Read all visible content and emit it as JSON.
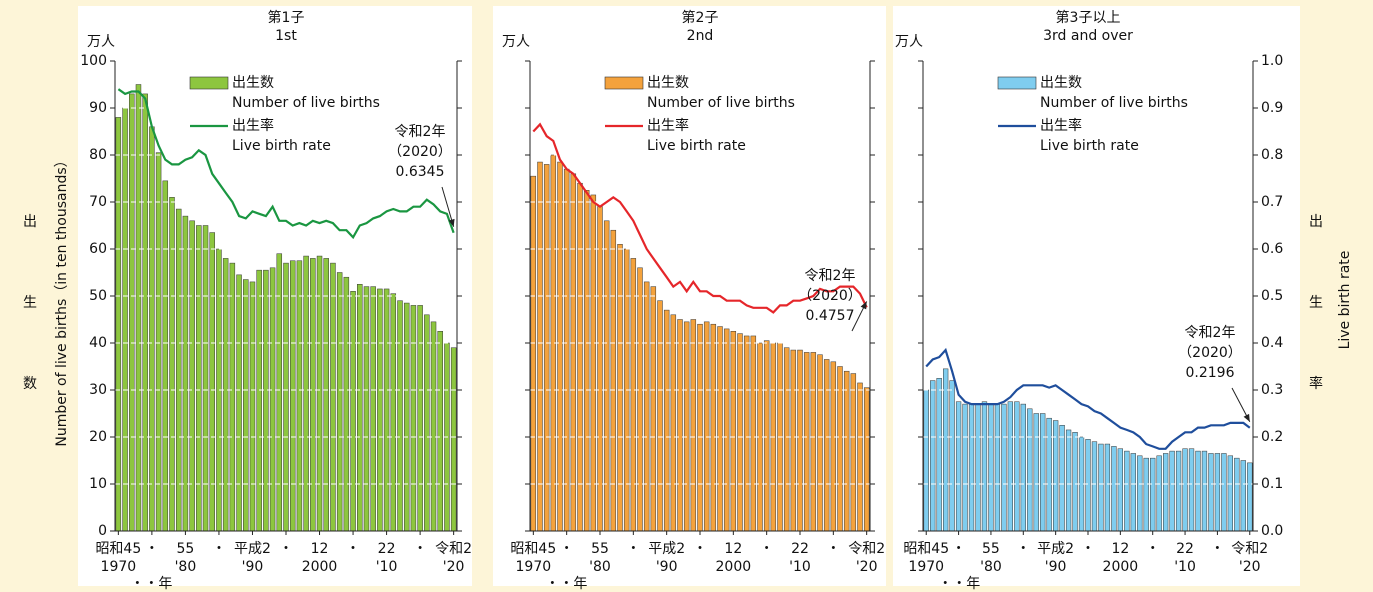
{
  "chart_data": [
    {
      "type": "combo",
      "title": "第1子",
      "subtitle": "1st",
      "unit": "万人",
      "ylabel": "Number of live births（in ten thousands）",
      "ylabel_ja": [
        "出",
        "生",
        "数"
      ],
      "x": [
        1970,
        1971,
        1972,
        1973,
        1974,
        1975,
        1976,
        1977,
        1978,
        1979,
        1980,
        1981,
        1982,
        1983,
        1984,
        1985,
        1986,
        1987,
        1988,
        1989,
        1990,
        1991,
        1992,
        1993,
        1994,
        1995,
        1996,
        1997,
        1998,
        1999,
        2000,
        2001,
        2002,
        2003,
        2004,
        2005,
        2006,
        2007,
        2008,
        2009,
        2010,
        2011,
        2012,
        2013,
        2014,
        2015,
        2016,
        2017,
        2018,
        2019,
        2020
      ],
      "xticks": [
        {
          "value": 1970,
          "label": "昭和45"
        },
        {
          "value": 1975,
          "label": "・"
        },
        {
          "value": 1980,
          "label": "55"
        },
        {
          "value": 1985,
          "label": "・"
        },
        {
          "value": 1990,
          "label": "平成2"
        },
        {
          "value": 1995,
          "label": "・"
        },
        {
          "value": 2000,
          "label": "12"
        },
        {
          "value": 2005,
          "label": "・"
        },
        {
          "value": 2010,
          "label": "22"
        },
        {
          "value": 2015,
          "label": "・"
        },
        {
          "value": 2020,
          "label": "令和2"
        }
      ],
      "xticks2": [
        1970,
        {
          "value": 1980,
          "label": "'80"
        },
        {
          "value": 1990,
          "label": "'90"
        },
        2000,
        {
          "value": 2010,
          "label": "'10"
        },
        {
          "value": 2020,
          "label": "'20"
        }
      ],
      "xlabel": "・・年",
      "ylim": [
        0,
        100
      ],
      "yticks": [
        0,
        10,
        20,
        30,
        40,
        50,
        60,
        70,
        80,
        90,
        100
      ],
      "ytick_labels": true,
      "y2lim": [
        0,
        1
      ],
      "y2ticks": [
        0,
        0.1,
        0.2,
        0.3,
        0.4,
        0.5,
        0.6,
        0.7,
        0.8,
        0.9,
        1
      ],
      "y2tick_labels": false,
      "grid": true,
      "series": [
        {
          "name": "出生数",
          "subname": "Number of live births",
          "type": "bar",
          "color": "#8dc63f",
          "values": [
            88,
            90,
            93,
            95,
            93,
            86,
            80.5,
            74.5,
            71,
            68.5,
            67,
            66,
            65,
            65,
            63.5,
            60,
            58,
            57,
            54.5,
            53.5,
            53,
            55.5,
            55.5,
            56,
            59,
            57,
            57.5,
            57.5,
            58.5,
            58,
            58.5,
            58,
            57,
            55,
            54,
            51,
            52.5,
            52,
            52,
            51.5,
            51.5,
            50.5,
            49,
            48.5,
            48,
            48,
            46,
            44.5,
            42.5,
            40,
            39
          ]
        },
        {
          "name": "出生率",
          "subname": "Live birth rate",
          "type": "line",
          "axis": "y2",
          "color": "#1a9641",
          "values": [
            0.94,
            0.93,
            0.935,
            0.935,
            0.92,
            0.86,
            0.82,
            0.79,
            0.78,
            0.78,
            0.79,
            0.795,
            0.81,
            0.8,
            0.76,
            0.74,
            0.72,
            0.7,
            0.67,
            0.665,
            0.68,
            0.675,
            0.67,
            0.69,
            0.66,
            0.66,
            0.65,
            0.655,
            0.65,
            0.66,
            0.655,
            0.66,
            0.655,
            0.64,
            0.64,
            0.625,
            0.65,
            0.655,
            0.665,
            0.67,
            0.68,
            0.685,
            0.68,
            0.68,
            0.69,
            0.69,
            0.705,
            0.695,
            0.68,
            0.675,
            0.6345
          ]
        }
      ],
      "annotation": [
        "令和2年",
        "（2020）",
        "0.6345"
      ]
    },
    {
      "type": "combo",
      "title": "第2子",
      "subtitle": "2nd",
      "unit": "万人",
      "x": [
        1970,
        1971,
        1972,
        1973,
        1974,
        1975,
        1976,
        1977,
        1978,
        1979,
        1980,
        1981,
        1982,
        1983,
        1984,
        1985,
        1986,
        1987,
        1988,
        1989,
        1990,
        1991,
        1992,
        1993,
        1994,
        1995,
        1996,
        1997,
        1998,
        1999,
        2000,
        2001,
        2002,
        2003,
        2004,
        2005,
        2006,
        2007,
        2008,
        2009,
        2010,
        2011,
        2012,
        2013,
        2014,
        2015,
        2016,
        2017,
        2018,
        2019,
        2020
      ],
      "xticks": [
        {
          "value": 1970,
          "label": "昭和45"
        },
        {
          "value": 1975,
          "label": "・"
        },
        {
          "value": 1980,
          "label": "55"
        },
        {
          "value": 1985,
          "label": "・"
        },
        {
          "value": 1990,
          "label": "平成2"
        },
        {
          "value": 1995,
          "label": "・"
        },
        {
          "value": 2000,
          "label": "12"
        },
        {
          "value": 2005,
          "label": "・"
        },
        {
          "value": 2010,
          "label": "22"
        },
        {
          "value": 2015,
          "label": "・"
        },
        {
          "value": 2020,
          "label": "令和2"
        }
      ],
      "xticks2": [
        1970,
        {
          "value": 1980,
          "label": "'80"
        },
        {
          "value": 1990,
          "label": "'90"
        },
        2000,
        {
          "value": 2010,
          "label": "'10"
        },
        {
          "value": 2020,
          "label": "'20"
        }
      ],
      "xlabel": "・・年",
      "ylim": [
        0,
        100
      ],
      "yticks": [
        0,
        10,
        20,
        30,
        40,
        50,
        60,
        70,
        80,
        90,
        100
      ],
      "ytick_labels": false,
      "y2lim": [
        0,
        1
      ],
      "y2ticks": [
        0,
        0.1,
        0.2,
        0.3,
        0.4,
        0.5,
        0.6,
        0.7,
        0.8,
        0.9,
        1
      ],
      "y2tick_labels": false,
      "grid": true,
      "series": [
        {
          "name": "出生数",
          "subname": "Number of live births",
          "type": "bar",
          "color": "#f4a23c",
          "values": [
            75.5,
            78.5,
            78,
            80,
            78.5,
            77,
            76,
            74,
            72.5,
            71.5,
            69,
            66,
            64,
            61,
            60,
            58,
            56,
            53,
            52,
            49,
            47,
            46,
            45,
            44.5,
            45,
            44,
            44.5,
            44,
            43.5,
            43,
            42.5,
            42,
            41.5,
            41.5,
            40,
            40.5,
            40,
            40,
            39,
            38.5,
            38.5,
            38,
            38,
            37.5,
            36.5,
            36,
            35,
            34,
            33.5,
            31.5,
            30.5
          ]
        },
        {
          "name": "出生率",
          "subname": "Live birth rate",
          "type": "line",
          "axis": "y2",
          "color": "#e5262a",
          "values": [
            0.85,
            0.865,
            0.84,
            0.83,
            0.79,
            0.77,
            0.76,
            0.74,
            0.72,
            0.7,
            0.69,
            0.7,
            0.71,
            0.7,
            0.68,
            0.66,
            0.63,
            0.6,
            0.58,
            0.56,
            0.54,
            0.52,
            0.53,
            0.51,
            0.53,
            0.51,
            0.51,
            0.5,
            0.5,
            0.49,
            0.49,
            0.49,
            0.48,
            0.475,
            0.475,
            0.475,
            0.465,
            0.48,
            0.48,
            0.49,
            0.49,
            0.495,
            0.5,
            0.515,
            0.51,
            0.51,
            0.52,
            0.52,
            0.52,
            0.505,
            0.4757
          ]
        }
      ],
      "annotation": [
        "令和2年",
        "（2020）",
        "0.4757"
      ]
    },
    {
      "type": "combo",
      "title": "第3子以上",
      "subtitle": "3rd and over",
      "unit": "万人",
      "y2label": "Live birth rate",
      "y2label_ja": [
        "出",
        "生",
        "率"
      ],
      "x": [
        1970,
        1971,
        1972,
        1973,
        1974,
        1975,
        1976,
        1977,
        1978,
        1979,
        1980,
        1981,
        1982,
        1983,
        1984,
        1985,
        1986,
        1987,
        1988,
        1989,
        1990,
        1991,
        1992,
        1993,
        1994,
        1995,
        1996,
        1997,
        1998,
        1999,
        2000,
        2001,
        2002,
        2003,
        2004,
        2005,
        2006,
        2007,
        2008,
        2009,
        2010,
        2011,
        2012,
        2013,
        2014,
        2015,
        2016,
        2017,
        2018,
        2019,
        2020
      ],
      "xticks": [
        {
          "value": 1970,
          "label": "昭和45"
        },
        {
          "value": 1975,
          "label": "・"
        },
        {
          "value": 1980,
          "label": "55"
        },
        {
          "value": 1985,
          "label": "・"
        },
        {
          "value": 1990,
          "label": "平成2"
        },
        {
          "value": 1995,
          "label": "・"
        },
        {
          "value": 2000,
          "label": "12"
        },
        {
          "value": 2005,
          "label": "・"
        },
        {
          "value": 2010,
          "label": "22"
        },
        {
          "value": 2015,
          "label": "・"
        },
        {
          "value": 2020,
          "label": "令和2"
        }
      ],
      "xticks2": [
        1970,
        {
          "value": 1980,
          "label": "'80"
        },
        {
          "value": 1990,
          "label": "'90"
        },
        2000,
        {
          "value": 2010,
          "label": "'10"
        },
        {
          "value": 2020,
          "label": "'20"
        }
      ],
      "xlabel": "・・年",
      "ylim": [
        0,
        100
      ],
      "yticks": [
        0,
        10,
        20,
        30,
        40,
        50,
        60,
        70,
        80,
        90,
        100
      ],
      "ytick_labels": false,
      "y2lim": [
        0,
        1
      ],
      "y2ticks": [
        {
          "value": 0,
          "label": "0.0"
        },
        0.1,
        0.2,
        0.3,
        0.4,
        0.5,
        0.6,
        0.7,
        0.8,
        0.9,
        {
          "value": 1,
          "label": "1.0"
        }
      ],
      "y2tick_labels": true,
      "grid": true,
      "series": [
        {
          "name": "出生数",
          "subname": "Number of live births",
          "type": "bar",
          "color": "#7fcdef",
          "values": [
            30,
            32,
            32.5,
            34.5,
            32,
            27.5,
            27,
            27,
            27,
            27.5,
            27,
            27,
            27,
            27.5,
            27.5,
            27,
            26,
            25,
            25,
            24,
            23.5,
            22.5,
            21.5,
            21,
            20,
            19.5,
            19,
            18.5,
            18.5,
            18,
            17.5,
            17,
            16.5,
            16,
            15.5,
            15.5,
            16,
            16.5,
            17,
            17,
            17.5,
            17.5,
            17,
            17,
            16.5,
            16.5,
            16.5,
            16,
            15.5,
            15,
            14.5
          ]
        },
        {
          "name": "出生率",
          "subname": "Live birth rate",
          "type": "line",
          "axis": "y2",
          "color": "#1f4e9c",
          "values": [
            0.35,
            0.365,
            0.37,
            0.385,
            0.34,
            0.29,
            0.275,
            0.27,
            0.27,
            0.27,
            0.27,
            0.27,
            0.275,
            0.285,
            0.3,
            0.31,
            0.31,
            0.31,
            0.31,
            0.305,
            0.31,
            0.3,
            0.29,
            0.28,
            0.27,
            0.265,
            0.255,
            0.25,
            0.24,
            0.23,
            0.22,
            0.215,
            0.21,
            0.2,
            0.185,
            0.18,
            0.175,
            0.175,
            0.19,
            0.2,
            0.21,
            0.21,
            0.22,
            0.22,
            0.225,
            0.225,
            0.225,
            0.23,
            0.23,
            0.23,
            0.2196
          ]
        }
      ],
      "annotation": [
        "令和2年",
        "（2020）",
        "0.2196"
      ]
    }
  ]
}
